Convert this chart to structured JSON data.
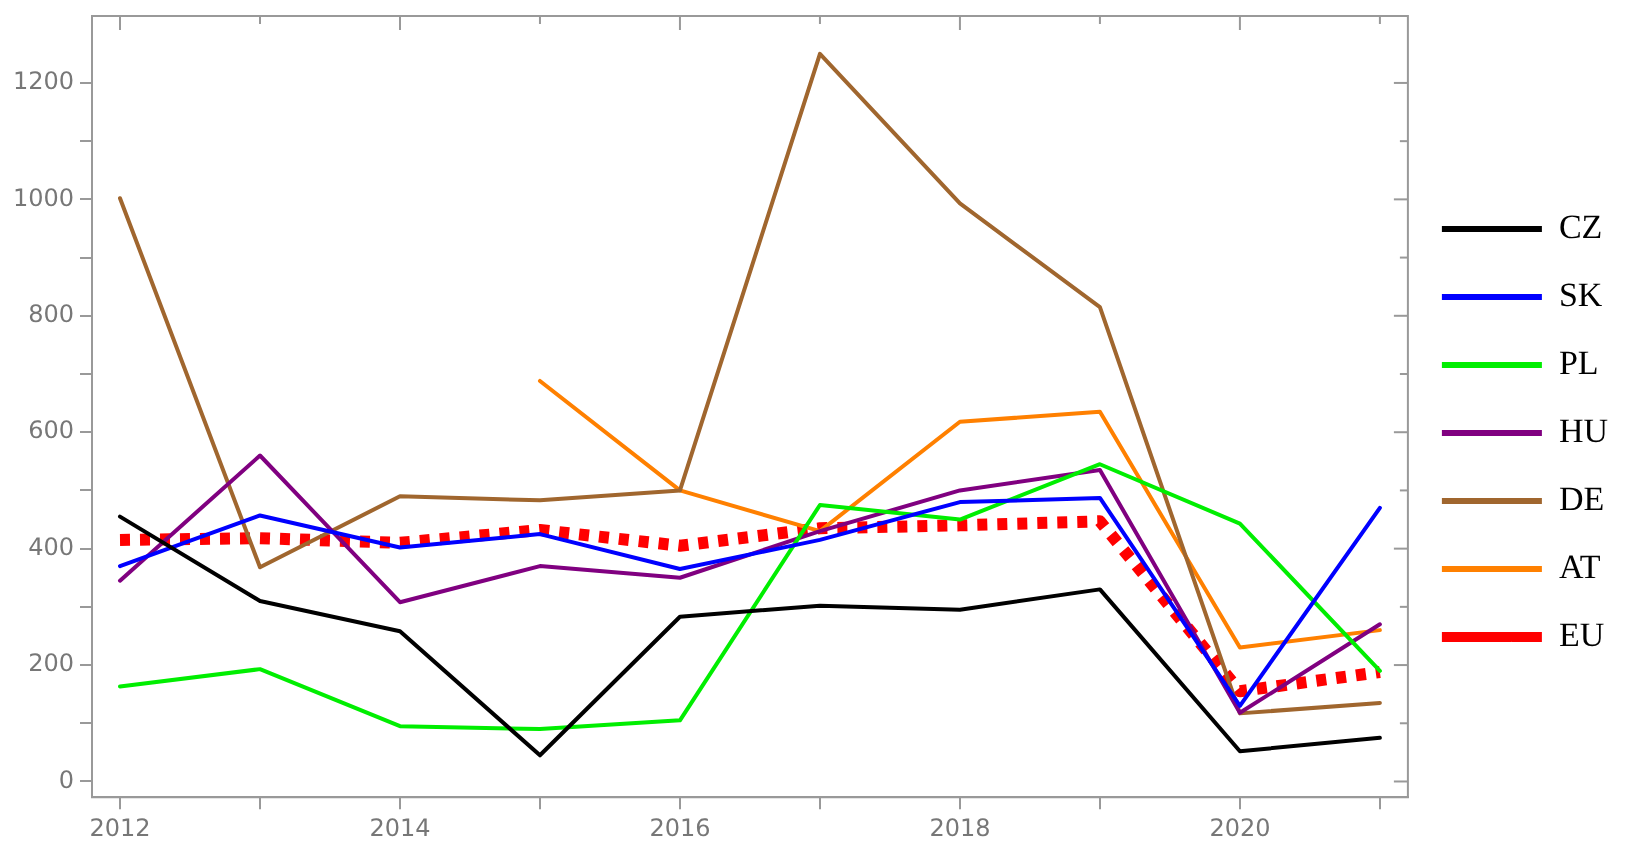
{
  "chart_data": {
    "type": "line",
    "x": [
      2012,
      2013,
      2014,
      2015,
      2016,
      2017,
      2018,
      2019,
      2020,
      2021
    ],
    "series": [
      {
        "name": "CZ",
        "color": "#000000",
        "values": [
          455,
          310,
          258,
          45,
          283,
          302,
          295,
          330,
          52,
          75
        ]
      },
      {
        "name": "SK",
        "color": "#0000ff",
        "values": [
          370,
          457,
          402,
          425,
          365,
          415,
          480,
          487,
          130,
          470
        ]
      },
      {
        "name": "PL",
        "color": "#00ee00",
        "values": [
          163,
          193,
          95,
          90,
          105,
          475,
          450,
          545,
          443,
          190
        ]
      },
      {
        "name": "HU",
        "color": "#800080",
        "values": [
          345,
          560,
          308,
          370,
          350,
          430,
          500,
          535,
          118,
          270
        ]
      },
      {
        "name": "DE",
        "color": "#a0662e",
        "values": [
          1002,
          368,
          490,
          483,
          500,
          1250,
          993,
          815,
          117,
          135
        ]
      },
      {
        "name": "AT",
        "color": "#ff8000",
        "values": [
          null,
          null,
          null,
          688,
          500,
          430,
          618,
          635,
          230,
          260
        ]
      },
      {
        "name": "EU",
        "color": "#ff0000",
        "values": [
          415,
          418,
          410,
          432,
          405,
          435,
          440,
          447,
          155,
          188
        ],
        "line_style": "dotted"
      }
    ],
    "xlim": [
      2011.8,
      2021.2
    ],
    "xticks": [
      2012,
      {
        "value": 2013,
        "label": null
      },
      2014,
      {
        "value": 2015,
        "label": null
      },
      2016,
      {
        "value": 2017,
        "label": null
      },
      2018,
      {
        "value": 2019,
        "label": null
      },
      2020,
      {
        "value": 2021,
        "label": null
      }
    ],
    "ylim": [
      -27,
      1315
    ],
    "yticks": [
      0,
      {
        "value": 100,
        "label": null
      },
      200,
      {
        "value": 300,
        "label": null
      },
      400,
      {
        "value": 500,
        "label": null
      },
      600,
      {
        "value": 700,
        "label": null
      },
      800,
      {
        "value": 900,
        "label": null
      },
      1000,
      {
        "value": 1100,
        "label": null
      },
      1200
    ],
    "grid": false,
    "legend": "right",
    "marker": "none",
    "line_style": "solid"
  }
}
